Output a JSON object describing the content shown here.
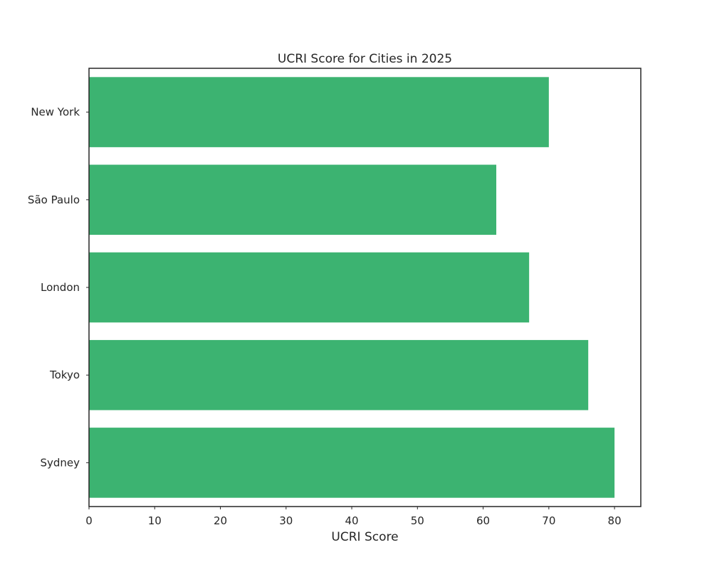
{
  "chart_data": {
    "type": "bar",
    "orientation": "horizontal",
    "title": "UCRI Score for Cities in 2025",
    "xlabel": "UCRI Score",
    "ylabel": "",
    "categories": [
      "New York",
      "São Paulo",
      "London",
      "Tokyo",
      "Sydney"
    ],
    "values": [
      70,
      62,
      67,
      76,
      80
    ],
    "xlim": [
      0,
      84
    ],
    "xticks": [
      0,
      10,
      20,
      30,
      40,
      50,
      60,
      70,
      80
    ],
    "bar_color": "#3cb371",
    "grid": false,
    "legend": "none"
  }
}
